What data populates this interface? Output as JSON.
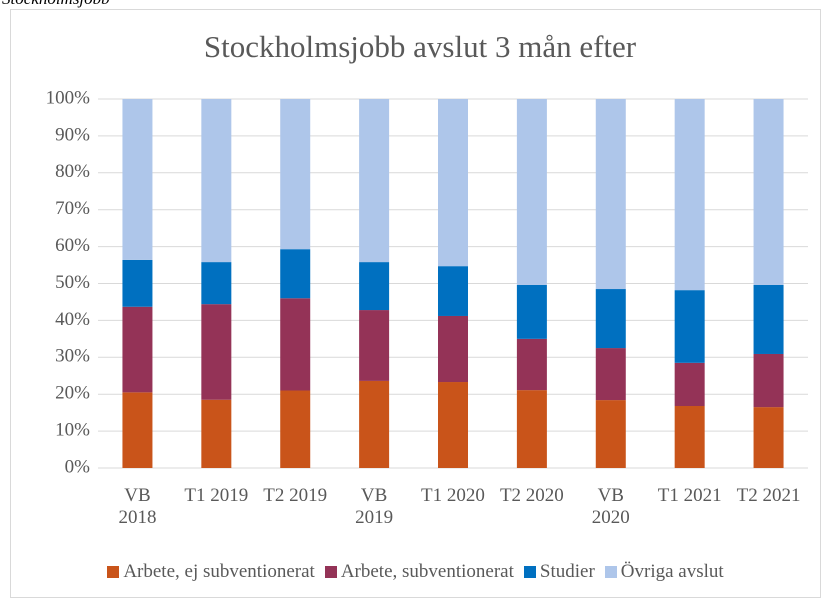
{
  "caption": "Stockholmsjobb",
  "chart_data": {
    "type": "stacked_bar",
    "title": "Stockholmsjobb avslut 3 mån efter",
    "categories": [
      "VB\n2018",
      "T1 2019",
      "T2 2019",
      "VB\n2019",
      "T1 2020",
      "T2 2020",
      "VB\n2020",
      "T1 2021",
      "T2 2021"
    ],
    "series": [
      {
        "name": "Arbete, ej subventionerat",
        "color": "#c9541a",
        "values": [
          20.5,
          18.5,
          21,
          23.6,
          23.3,
          21.1,
          18.4,
          16.8,
          16.5
        ]
      },
      {
        "name": "Arbete, subventionerat",
        "color": "#943357",
        "values": [
          23.2,
          25.9,
          25,
          19.2,
          17.9,
          13.9,
          14.1,
          11.7,
          14.4
        ]
      },
      {
        "name": "Studier",
        "color": "#0070c0",
        "values": [
          12.7,
          11.4,
          13.3,
          13,
          13.5,
          14.6,
          16,
          19.7,
          18.7
        ]
      },
      {
        "name": "Övriga avslut",
        "color": "#aec6ea",
        "values": [
          43.6,
          44.2,
          40.7,
          44.2,
          45.3,
          50.4,
          51.5,
          51.8,
          50.4
        ]
      }
    ],
    "ylim": [
      0,
      100
    ],
    "yticks": [
      {
        "value": 0,
        "label": "0%"
      },
      {
        "value": 10,
        "label": "10%"
      },
      {
        "value": 20,
        "label": "20%"
      },
      {
        "value": 30,
        "label": "30%"
      },
      {
        "value": 40,
        "label": "40%"
      },
      {
        "value": 50,
        "label": "50%"
      },
      {
        "value": 60,
        "label": "60%"
      },
      {
        "value": 70,
        "label": "70%"
      },
      {
        "value": 80,
        "label": "80%"
      },
      {
        "value": 90,
        "label": "90%"
      },
      {
        "value": 100,
        "label": "100%"
      }
    ],
    "grid": true,
    "legend": "bottom"
  }
}
